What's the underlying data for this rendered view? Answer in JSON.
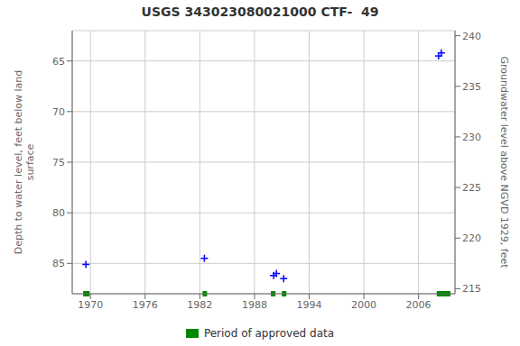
{
  "chart_data": {
    "type": "scatter",
    "title": "USGS 343023080021000 CTF-  49",
    "ylabel": "Depth to water level, feet below land\n surface",
    "y2label": "Groundwater level above NGVD 1929, feet",
    "xlim": [
      1968,
      2010
    ],
    "xticks": [
      1970,
      1976,
      1982,
      1988,
      1994,
      2000,
      2006
    ],
    "ylim": [
      88,
      62
    ],
    "yticks": [
      65,
      70,
      75,
      80,
      85
    ],
    "y2lim": [
      214.5,
      240.5
    ],
    "y2ticks": [
      215,
      220,
      225,
      230,
      235,
      240
    ],
    "grid": true,
    "legend": "bottom",
    "series": [
      {
        "type": "scatter",
        "marker": "+",
        "color": "#0000ff",
        "x": [
          1969.5,
          1982.5,
          1990.1,
          1990.4,
          1991.2,
          2008.2,
          2008.5
        ],
        "values": [
          85.1,
          84.5,
          86.2,
          86.0,
          86.5,
          64.5,
          64.2
        ]
      },
      {
        "name": "Period of approved data",
        "type": "span",
        "color": "#008800",
        "x_start": [
          1969.2,
          1982.3,
          1989.8,
          1991.0,
          2008.0
        ],
        "x_end": [
          1969.9,
          1982.8,
          1990.3,
          1991.5,
          2009.5
        ]
      }
    ]
  }
}
